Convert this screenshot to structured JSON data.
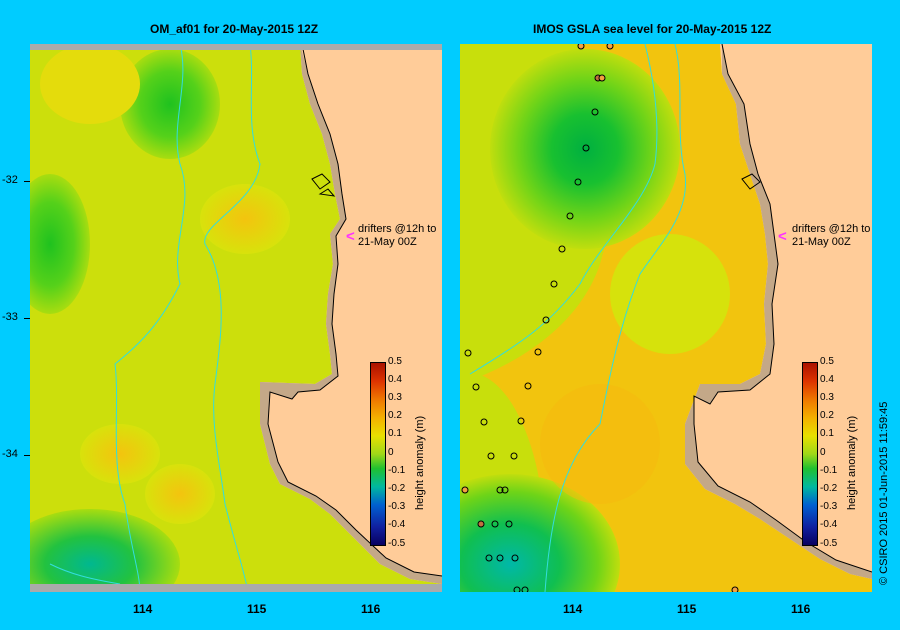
{
  "left_title": "OM_af01  for 20-May-2015 12Z",
  "right_title": "IMOS  GSLA sea level   for 20-May-2015 12Z",
  "y_ticks": [
    "-32",
    "-33",
    "-34"
  ],
  "x_ticks": [
    "114",
    "115",
    "116"
  ],
  "drifter_line1": "drifters @12h to",
  "drifter_line2": "21-May 00Z",
  "colorbar_ticks": [
    "0.5",
    "0.4",
    "0.3",
    "0.2",
    "0.1",
    "0",
    "-0.1",
    "-0.2",
    "-0.3",
    "-0.4",
    "-0.5"
  ],
  "colorbar_title": "height anomaly (m)",
  "credit": "© CSIRO 2015   01-Jun-2015 11:59:45",
  "colors": {
    "background": "#00ccff",
    "land": "#ffcc99",
    "arrow": "#ff33ff"
  }
}
